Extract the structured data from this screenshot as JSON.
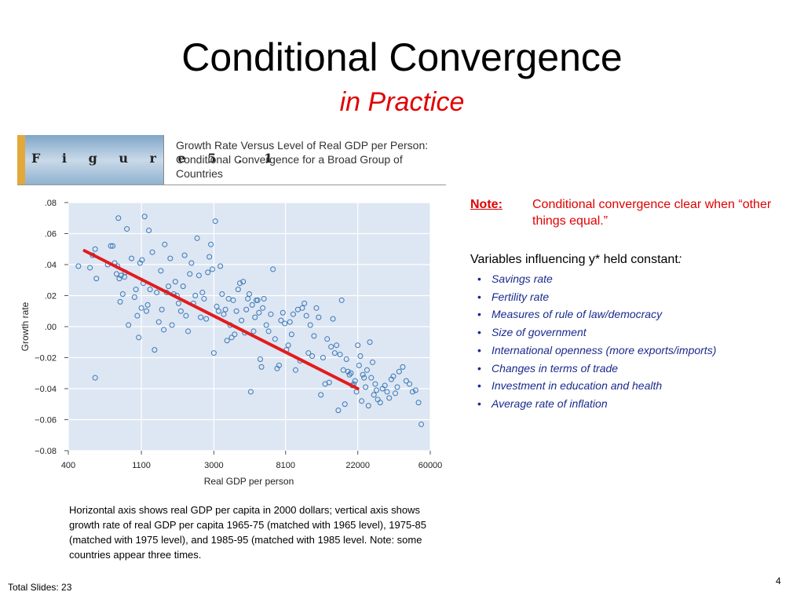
{
  "slide": {
    "title": "Conditional Convergence",
    "subtitle": "in Practice",
    "figure_label": "F i g u r e   5 . 1",
    "figure_caption": "Growth Rate Versus Level of Real GDP per Person: Conditional Convergence for a Broad Group of Countries",
    "chart_note": "Horizontal axis shows real GDP per capita in 2000 dollars; vertical axis shows growth rate of real GDP per capita 1965-75 (matched with 1965 level), 1975-85 (matched with 1975 level), and 1985-95 (matched with 1985 level.  Note: some countries appear three times.",
    "note_label": "Note",
    "note_text": "Conditional convergence clear when “other things equal.”",
    "variables_heading": "Variables influencing y* held constant",
    "variables_heading_colon": ":",
    "variables": [
      "Savings rate",
      "Fertility rate",
      "Measures of rule of law/democracy",
      "Size of government",
      "International openness (more exports/imports)",
      "Changes in terms of trade",
      "Investment in education and health",
      "Average rate of inflation"
    ],
    "bullet_char": "•",
    "total_slides": "Total Slides: 23",
    "page_number": "4"
  },
  "colors": {
    "title": "#000000",
    "subtitle": "#e00000",
    "note": "#e00000",
    "variables": "#1a2a8c",
    "plot_bg": "#dde6f3",
    "point": "#3a78b5",
    "fit_line": "#e11c1c"
  },
  "chart_data": {
    "type": "scatter",
    "xlabel": "Real GDP per person",
    "ylabel": "Growth rate",
    "x_scale": "log",
    "xlim": [
      400,
      60000
    ],
    "ylim": [
      -0.08,
      0.08
    ],
    "x_ticks": [
      400,
      1100,
      3000,
      8100,
      22000,
      60000
    ],
    "x_tick_labels": [
      "400",
      "1100",
      "3000",
      "8100",
      "22000",
      "60000"
    ],
    "y_ticks": [
      0.08,
      0.06,
      0.04,
      0.02,
      0.0,
      -0.02,
      -0.04,
      -0.06,
      -0.08
    ],
    "y_tick_labels": [
      ".08",
      ".06",
      ".04",
      ".02",
      ".00",
      "−0.02",
      "−0.04",
      "−0.06",
      "−0.08"
    ],
    "fit_line": {
      "x": [
        500,
        22000
      ],
      "y": [
        0.049,
        -0.04
      ]
    },
    "points": [
      [
        460,
        0.039
      ],
      [
        560,
        0.046
      ],
      [
        580,
        0.05
      ],
      [
        540,
        0.038
      ],
      [
        590,
        0.031
      ],
      [
        580,
        -0.033
      ],
      [
        690,
        0.04
      ],
      [
        720,
        0.052
      ],
      [
        740,
        0.052
      ],
      [
        760,
        0.041
      ],
      [
        780,
        0.034
      ],
      [
        790,
        0.039
      ],
      [
        800,
        0.07
      ],
      [
        810,
        0.031
      ],
      [
        820,
        0.016
      ],
      [
        830,
        0.033
      ],
      [
        850,
        0.021
      ],
      [
        870,
        0.032
      ],
      [
        880,
        0.035
      ],
      [
        900,
        0.063
      ],
      [
        920,
        0.001
      ],
      [
        960,
        0.044
      ],
      [
        1000,
        0.019
      ],
      [
        1020,
        0.024
      ],
      [
        1040,
        0.007
      ],
      [
        1060,
        -0.007
      ],
      [
        1080,
        0.041
      ],
      [
        1100,
        0.012
      ],
      [
        1110,
        0.043
      ],
      [
        1130,
        0.028
      ],
      [
        1150,
        0.071
      ],
      [
        1180,
        0.01
      ],
      [
        1200,
        0.014
      ],
      [
        1220,
        0.062
      ],
      [
        1240,
        0.024
      ],
      [
        1280,
        0.048
      ],
      [
        1320,
        -0.015
      ],
      [
        1360,
        0.022
      ],
      [
        1400,
        0.003
      ],
      [
        1440,
        0.036
      ],
      [
        1460,
        0.011
      ],
      [
        1500,
        -0.002
      ],
      [
        1520,
        0.053
      ],
      [
        1560,
        0.022
      ],
      [
        1600,
        0.026
      ],
      [
        1640,
        0.044
      ],
      [
        1680,
        0.001
      ],
      [
        1720,
        0.021
      ],
      [
        1760,
        0.029
      ],
      [
        1800,
        0.02
      ],
      [
        1840,
        0.015
      ],
      [
        1900,
        0.01
      ],
      [
        1960,
        0.026
      ],
      [
        2000,
        0.046
      ],
      [
        2040,
        0.007
      ],
      [
        2100,
        -0.003
      ],
      [
        2150,
        0.034
      ],
      [
        2200,
        0.041
      ],
      [
        2260,
        0.015
      ],
      [
        2320,
        0.02
      ],
      [
        2380,
        0.057
      ],
      [
        2440,
        0.033
      ],
      [
        2500,
        0.006
      ],
      [
        2560,
        0.022
      ],
      [
        2620,
        0.018
      ],
      [
        2700,
        0.005
      ],
      [
        2760,
        0.035
      ],
      [
        2820,
        0.045
      ],
      [
        2880,
        0.053
      ],
      [
        2940,
        0.037
      ],
      [
        3000,
        -0.017
      ],
      [
        3060,
        0.068
      ],
      [
        3120,
        0.013
      ],
      [
        3200,
        0.01
      ],
      [
        3280,
        0.039
      ],
      [
        3360,
        0.021
      ],
      [
        3440,
        0.008
      ],
      [
        3520,
        0.011
      ],
      [
        3600,
        -0.009
      ],
      [
        3680,
        0.018
      ],
      [
        3760,
        0.001
      ],
      [
        3840,
        -0.007
      ],
      [
        3920,
        0.017
      ],
      [
        4000,
        -0.005
      ],
      [
        4100,
        0.01
      ],
      [
        4200,
        0.024
      ],
      [
        4300,
        0.028
      ],
      [
        4400,
        0.004
      ],
      [
        4500,
        0.029
      ],
      [
        4600,
        -0.004
      ],
      [
        4700,
        0.011
      ],
      [
        4800,
        0.018
      ],
      [
        4900,
        0.021
      ],
      [
        5000,
        -0.042
      ],
      [
        5100,
        0.014
      ],
      [
        5200,
        -0.003
      ],
      [
        5300,
        0.006
      ],
      [
        5400,
        0.017
      ],
      [
        5500,
        0.017
      ],
      [
        5600,
        0.009
      ],
      [
        5700,
        -0.021
      ],
      [
        5800,
        -0.026
      ],
      [
        5900,
        0.012
      ],
      [
        6000,
        0.018
      ],
      [
        6200,
        0.001
      ],
      [
        6400,
        -0.003
      ],
      [
        6600,
        0.008
      ],
      [
        6800,
        0.037
      ],
      [
        7000,
        -0.008
      ],
      [
        7200,
        -0.027
      ],
      [
        7400,
        -0.025
      ],
      [
        7600,
        0.004
      ],
      [
        7800,
        0.009
      ],
      [
        8000,
        0.002
      ],
      [
        8200,
        -0.015
      ],
      [
        8400,
        -0.012
      ],
      [
        8600,
        0.003
      ],
      [
        8800,
        -0.005
      ],
      [
        9000,
        0.008
      ],
      [
        9300,
        -0.028
      ],
      [
        9600,
        0.011
      ],
      [
        9900,
        -0.022
      ],
      [
        10200,
        0.012
      ],
      [
        10500,
        0.015
      ],
      [
        10800,
        0.007
      ],
      [
        11100,
        -0.017
      ],
      [
        11400,
        0.001
      ],
      [
        11700,
        -0.019
      ],
      [
        12000,
        -0.006
      ],
      [
        12400,
        0.012
      ],
      [
        12800,
        0.006
      ],
      [
        13200,
        -0.044
      ],
      [
        13600,
        -0.02
      ],
      [
        14000,
        -0.037
      ],
      [
        14400,
        -0.008
      ],
      [
        14800,
        -0.036
      ],
      [
        15200,
        -0.013
      ],
      [
        15600,
        0.005
      ],
      [
        16000,
        -0.017
      ],
      [
        16400,
        -0.012
      ],
      [
        16800,
        -0.054
      ],
      [
        17200,
        -0.018
      ],
      [
        17600,
        0.017
      ],
      [
        18000,
        -0.028
      ],
      [
        18400,
        -0.05
      ],
      [
        18800,
        -0.021
      ],
      [
        19200,
        -0.029
      ],
      [
        19600,
        -0.031
      ],
      [
        20000,
        -0.03
      ],
      [
        20400,
        -0.038
      ],
      [
        20800,
        -0.037
      ],
      [
        21200,
        -0.035
      ],
      [
        21600,
        -0.042
      ],
      [
        22000,
        -0.012
      ],
      [
        22400,
        -0.025
      ],
      [
        22800,
        -0.019
      ],
      [
        23200,
        -0.048
      ],
      [
        23600,
        -0.031
      ],
      [
        24000,
        -0.033
      ],
      [
        24500,
        -0.039
      ],
      [
        25000,
        -0.028
      ],
      [
        25500,
        -0.051
      ],
      [
        26000,
        -0.01
      ],
      [
        26500,
        -0.033
      ],
      [
        27000,
        -0.023
      ],
      [
        27500,
        -0.044
      ],
      [
        28000,
        -0.037
      ],
      [
        28500,
        -0.041
      ],
      [
        29000,
        -0.047
      ],
      [
        30000,
        -0.049
      ],
      [
        31000,
        -0.04
      ],
      [
        32000,
        -0.038
      ],
      [
        33000,
        -0.042
      ],
      [
        34000,
        -0.046
      ],
      [
        35000,
        -0.034
      ],
      [
        36000,
        -0.032
      ],
      [
        37000,
        -0.043
      ],
      [
        38000,
        -0.039
      ],
      [
        39000,
        -0.029
      ],
      [
        41000,
        -0.026
      ],
      [
        43000,
        -0.035
      ],
      [
        45000,
        -0.037
      ],
      [
        47000,
        -0.042
      ],
      [
        49000,
        -0.041
      ],
      [
        51000,
        -0.049
      ],
      [
        53000,
        -0.063
      ]
    ]
  }
}
